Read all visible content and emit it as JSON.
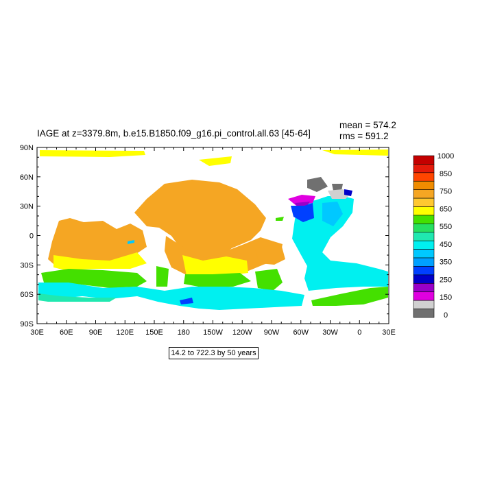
{
  "title": "IAGE at z=3379.8m, b.e15.B1850.f09_g16.pi_control.all.63 [45-64]",
  "mean_text": "mean = 574.2",
  "rms_text": "rms = 591.2",
  "range_text": "14.2 to 722.3 by 50 years",
  "map": {
    "x_ticks": [
      "30E",
      "60E",
      "90E",
      "120E",
      "150E",
      "180",
      "150W",
      "120W",
      "90W",
      "60W",
      "30W",
      "0",
      "30E"
    ],
    "y_ticks": [
      "90N",
      "60N",
      "30N",
      "0",
      "30S",
      "60S",
      "90S"
    ]
  },
  "colorbar": {
    "labels": [
      "1000",
      "850",
      "750",
      "650",
      "550",
      "450",
      "350",
      "250",
      "150",
      "0"
    ],
    "colors": [
      "#c40000",
      "#e41a0a",
      "#ff4500",
      "#f08c00",
      "#f5a623",
      "#ffc830",
      "#ffff00",
      "#44e000",
      "#26e060",
      "#20e8b0",
      "#00f0f0",
      "#00c8ff",
      "#00a0ff",
      "#0040ff",
      "#0000c8",
      "#9a00c8",
      "#e000e0",
      "#d0d0d0",
      "#707070"
    ]
  }
}
